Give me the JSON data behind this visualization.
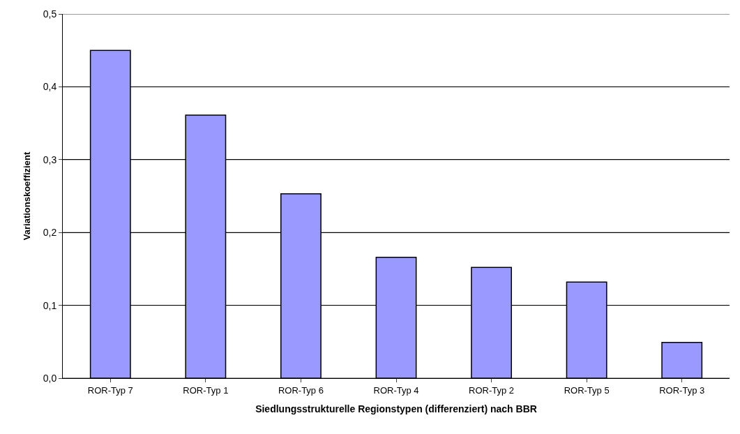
{
  "chart_data": {
    "type": "bar",
    "xlabel": "Siedlungsstrukturelle Regionstypen (differenziert) nach BBR",
    "ylabel": "Variationskoeffizient",
    "categories": [
      "ROR-Typ 7",
      "ROR-Typ 1",
      "ROR-Typ 6",
      "ROR-Typ 4",
      "ROR-Typ 2",
      "ROR-Typ 5",
      "ROR-Typ 3"
    ],
    "values": [
      0.45,
      0.361,
      0.253,
      0.166,
      0.152,
      0.132,
      0.049
    ],
    "color": "#9999ff",
    "ylim": [
      0,
      0.5
    ],
    "yticks": [
      {
        "value": 0,
        "label": "0,0"
      },
      {
        "value": 0.1,
        "label": "0,1"
      },
      {
        "value": 0.2,
        "label": "0,2"
      },
      {
        "value": 0.3,
        "label": "0,3"
      },
      {
        "value": 0.4,
        "label": "0,4"
      },
      {
        "value": 0.5,
        "label": "0,5"
      }
    ],
    "grid": "y"
  }
}
